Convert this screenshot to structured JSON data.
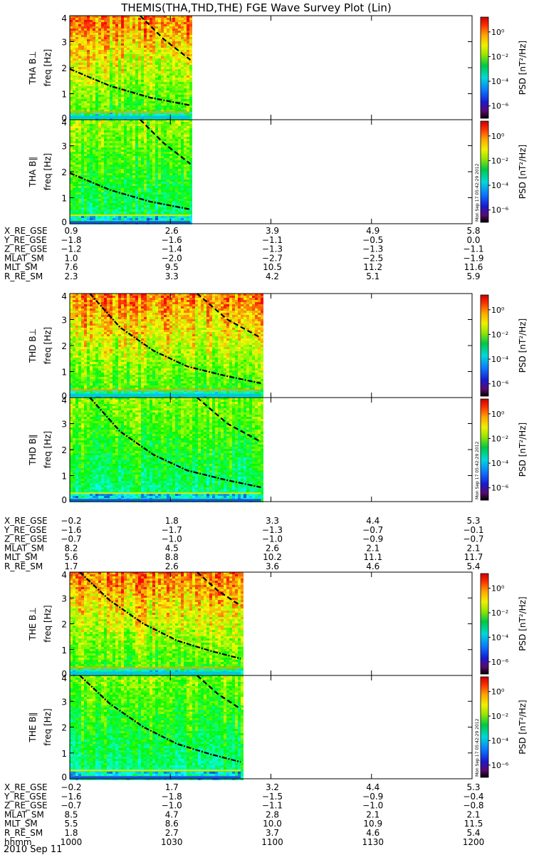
{
  "title": "THEMIS(THA,THD,THE) FGE Wave Survey Plot (Lin)",
  "colorbar": {
    "label": "PSD [nT²/Hz]",
    "ticks": [
      "10⁰",
      "10⁻²",
      "10⁻⁴",
      "10⁻⁶"
    ],
    "exponents": [
      0,
      -2,
      -4,
      -6
    ],
    "side_stamp": "Mon Sep 17 05:42:29 2012"
  },
  "date_label": "2010 Sep 11",
  "chart_data": [
    {
      "type": "heatmap",
      "probe": "THA",
      "component": "B⊥",
      "ylabel": "THA B⊥",
      "ylabel2": "freq [Hz]",
      "x": [
        "1000",
        "1030",
        "1100",
        "1130",
        "1200"
      ],
      "y_ticks": [
        "0",
        "1",
        "2",
        "3",
        "4"
      ],
      "ylim": [
        0,
        4
      ],
      "data_end_hhmm": 1036,
      "curves": [
        {
          "style": "dash-dot",
          "points": [
            [
              1000,
              1.95
            ],
            [
              1012,
              1.3
            ],
            [
              1024,
              0.85
            ],
            [
              1036,
              0.55
            ]
          ]
        },
        {
          "style": "dashed",
          "points": [
            [
              1021,
              4.0
            ],
            [
              1028,
              3.1
            ],
            [
              1036,
              2.3
            ]
          ]
        }
      ]
    },
    {
      "type": "heatmap",
      "probe": "THA",
      "component": "B∥",
      "ylabel": "THA B∥",
      "ylabel2": "freq [Hz]",
      "x": [
        "1000",
        "1030",
        "1100",
        "1130",
        "1200"
      ],
      "y_ticks": [
        "0",
        "1",
        "2",
        "3",
        "4"
      ],
      "ylim": [
        0,
        4
      ],
      "data_end_hhmm": 1036,
      "curves": [
        {
          "style": "dash-dot",
          "points": [
            [
              1000,
              1.95
            ],
            [
              1012,
              1.3
            ],
            [
              1024,
              0.85
            ],
            [
              1036,
              0.55
            ]
          ]
        },
        {
          "style": "dashed",
          "points": [
            [
              1021,
              4.0
            ],
            [
              1028,
              3.1
            ],
            [
              1036,
              2.3
            ]
          ]
        }
      ]
    },
    {
      "type": "heatmap",
      "probe": "THD",
      "component": "B⊥",
      "ylabel": "THD B⊥",
      "ylabel2": "freq [Hz]",
      "x": [
        "1000",
        "1030",
        "1100",
        "1130",
        "1200"
      ],
      "y_ticks": [
        "0",
        "1",
        "2",
        "3",
        "4"
      ],
      "ylim": [
        0,
        4
      ],
      "data_end_hhmm": 1057,
      "curves": [
        {
          "style": "dash-dot",
          "points": [
            [
              1006,
              4.0
            ],
            [
              1015,
              2.7
            ],
            [
              1025,
              1.8
            ],
            [
              1035,
              1.2
            ],
            [
              1046,
              0.85
            ],
            [
              1057,
              0.55
            ]
          ]
        },
        {
          "style": "dashed",
          "points": [
            [
              1038,
              4.0
            ],
            [
              1047,
              3.0
            ],
            [
              1057,
              2.3
            ]
          ]
        }
      ]
    },
    {
      "type": "heatmap",
      "probe": "THD",
      "component": "B∥",
      "ylabel": "THD B∥",
      "ylabel2": "freq [Hz]",
      "x": [
        "1000",
        "1030",
        "1100",
        "1130",
        "1200"
      ],
      "y_ticks": [
        "0",
        "1",
        "2",
        "3",
        "4"
      ],
      "ylim": [
        0,
        4
      ],
      "data_end_hhmm": 1057,
      "curves": [
        {
          "style": "dash-dot",
          "points": [
            [
              1006,
              4.0
            ],
            [
              1015,
              2.7
            ],
            [
              1025,
              1.8
            ],
            [
              1035,
              1.2
            ],
            [
              1046,
              0.85
            ],
            [
              1057,
              0.55
            ]
          ]
        },
        {
          "style": "dashed",
          "points": [
            [
              1038,
              4.0
            ],
            [
              1047,
              3.0
            ],
            [
              1057,
              2.3
            ]
          ]
        }
      ]
    },
    {
      "type": "heatmap",
      "probe": "THE",
      "component": "B⊥",
      "ylabel": "THE B⊥",
      "ylabel2": "freq [Hz]",
      "x": [
        "1000",
        "1030",
        "1100",
        "1130",
        "1200"
      ],
      "y_ticks": [
        "0",
        "1",
        "2",
        "3",
        "4"
      ],
      "ylim": [
        0,
        4
      ],
      "data_end_hhmm": 1051,
      "curves": [
        {
          "style": "dash-dot",
          "points": [
            [
              1003,
              4.0
            ],
            [
              1012,
              2.9
            ],
            [
              1022,
              2.0
            ],
            [
              1032,
              1.35
            ],
            [
              1042,
              0.95
            ],
            [
              1051,
              0.65
            ]
          ]
        },
        {
          "style": "dashed",
          "points": [
            [
              1038,
              4.0
            ],
            [
              1044,
              3.3
            ],
            [
              1051,
              2.7
            ]
          ]
        }
      ]
    },
    {
      "type": "heatmap",
      "probe": "THE",
      "component": "B∥",
      "ylabel": "THE B∥",
      "ylabel2": "freq [Hz]",
      "x": [
        "1000",
        "1030",
        "1100",
        "1130",
        "1200"
      ],
      "y_ticks": [
        "0",
        "1",
        "2",
        "3",
        "4"
      ],
      "ylim": [
        0,
        4
      ],
      "data_end_hhmm": 1051,
      "curves": [
        {
          "style": "dash-dot",
          "points": [
            [
              1003,
              4.0
            ],
            [
              1012,
              2.9
            ],
            [
              1022,
              2.0
            ],
            [
              1032,
              1.35
            ],
            [
              1042,
              0.95
            ],
            [
              1051,
              0.65
            ]
          ]
        },
        {
          "style": "dashed",
          "points": [
            [
              1038,
              4.0
            ],
            [
              1044,
              3.3
            ],
            [
              1051,
              2.7
            ]
          ]
        }
      ]
    }
  ],
  "ephemeris": [
    {
      "probe": "THA",
      "rows": [
        {
          "label": "X_RE_GSE",
          "values": [
            "0.9",
            "2.6",
            "3.9",
            "4.9",
            "5.8"
          ]
        },
        {
          "label": "Y_RE_GSE",
          "values": [
            "−1.8",
            "−1.6",
            "−1.1",
            "−0.5",
            "0.0"
          ]
        },
        {
          "label": "Z_RE_GSE",
          "values": [
            "−1.2",
            "−1.4",
            "−1.3",
            "−1.3",
            "−1.1"
          ]
        },
        {
          "label": "MLAT_SM",
          "values": [
            "1.0",
            "−2.0",
            "−2.7",
            "−2.5",
            "−1.9"
          ]
        },
        {
          "label": "MLT_SM",
          "values": [
            "7.6",
            "9.5",
            "10.5",
            "11.2",
            "11.6"
          ]
        },
        {
          "label": "R_RE_SM",
          "values": [
            "2.3",
            "3.3",
            "4.2",
            "5.1",
            "5.9"
          ]
        }
      ]
    },
    {
      "probe": "THD",
      "rows": [
        {
          "label": "X_RE_GSE",
          "values": [
            "−0.2",
            "1.8",
            "3.3",
            "4.4",
            "5.3"
          ]
        },
        {
          "label": "Y_RE_GSE",
          "values": [
            "−1.6",
            "−1.7",
            "−1.3",
            "−0.7",
            "−0.1"
          ]
        },
        {
          "label": "Z_RE_GSE",
          "values": [
            "−0.7",
            "−1.0",
            "−1.0",
            "−0.9",
            "−0.7"
          ]
        },
        {
          "label": "MLAT_SM",
          "values": [
            "8.2",
            "4.5",
            "2.6",
            "2.1",
            "2.1"
          ]
        },
        {
          "label": "MLT_SM",
          "values": [
            "5.6",
            "8.8",
            "10.2",
            "11.1",
            "11.7"
          ]
        },
        {
          "label": "R_RE_SM",
          "values": [
            "1.7",
            "2.6",
            "3.6",
            "4.6",
            "5.4"
          ]
        }
      ]
    },
    {
      "probe": "THE",
      "rows": [
        {
          "label": "X_RE_GSE",
          "values": [
            "−0.2",
            "1.7",
            "3.2",
            "4.4",
            "5.3"
          ]
        },
        {
          "label": "Y_RE_GSE",
          "values": [
            "−1.6",
            "−1.8",
            "−1.5",
            "−0.9",
            "−0.4"
          ]
        },
        {
          "label": "Z_RE_GSE",
          "values": [
            "−0.7",
            "−1.0",
            "−1.1",
            "−1.0",
            "−0.8"
          ]
        },
        {
          "label": "MLAT_SM",
          "values": [
            "8.5",
            "4.7",
            "2.8",
            "2.1",
            "2.1"
          ]
        },
        {
          "label": "MLT_SM",
          "values": [
            "5.5",
            "8.6",
            "10.0",
            "10.9",
            "11.5"
          ]
        },
        {
          "label": "R_RE_SM",
          "values": [
            "1.8",
            "2.7",
            "3.7",
            "4.6",
            "5.4"
          ]
        },
        {
          "label": "hhmm",
          "values": [
            "1000",
            "1030",
            "1100",
            "1130",
            "1200"
          ]
        }
      ]
    }
  ]
}
